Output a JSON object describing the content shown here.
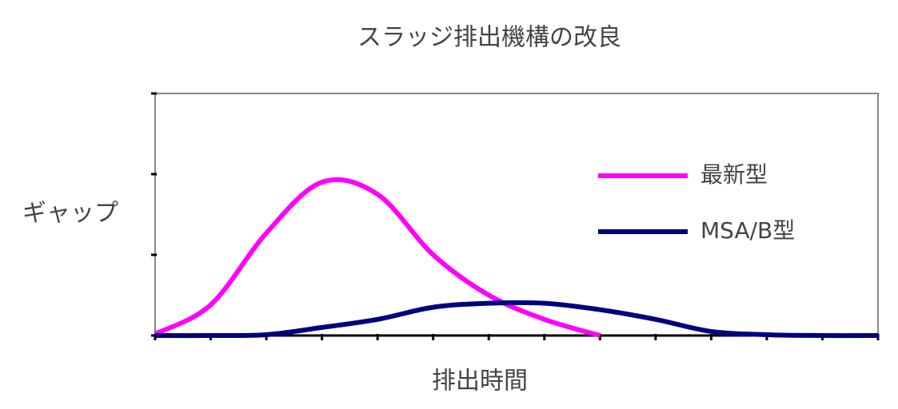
{
  "chart_data": {
    "type": "line",
    "title": "スラッジ排出機構の改良",
    "x_label": "排出時間",
    "y_label": "ギャップ",
    "x": [
      0,
      1,
      2,
      3,
      4,
      5,
      6,
      7,
      8,
      9,
      10,
      11,
      12,
      13
    ],
    "series": [
      {
        "name": "最新型",
        "color": "#ff00ff",
        "values": [
          0.02,
          0.38,
          1.27,
          1.9,
          1.75,
          1.0,
          0.5,
          0.2,
          0.0,
          null,
          null,
          null,
          null,
          null
        ]
      },
      {
        "name": "MSA/B型",
        "color": "#000080",
        "values": [
          0,
          0,
          0.01,
          0.1,
          0.2,
          0.35,
          0.4,
          0.4,
          0.32,
          0.2,
          0.05,
          0.01,
          0,
          0
        ]
      }
    ],
    "xlim": [
      0,
      13
    ],
    "xticks": [
      0,
      1,
      2,
      3,
      4,
      5,
      6,
      7,
      8,
      9,
      10,
      11,
      12,
      13
    ],
    "ylim": [
      0,
      3
    ],
    "yticks": [
      0,
      1,
      2,
      3
    ],
    "legend": "right"
  }
}
